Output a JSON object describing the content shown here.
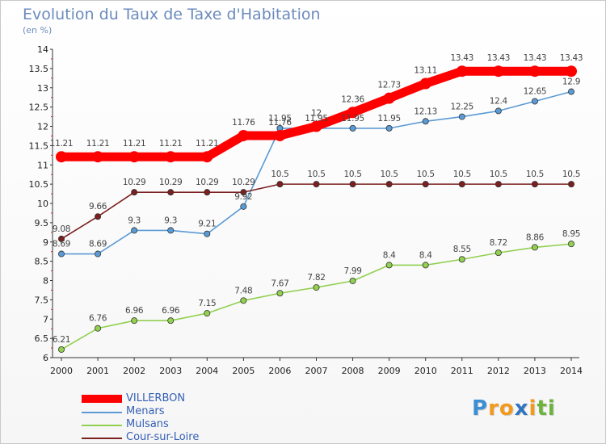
{
  "chart_data": {
    "type": "line",
    "title": "Evolution du Taux de Taxe d'Habitation",
    "ylabel": "(en %)",
    "xlabel": "",
    "x": [
      "2000",
      "2001",
      "2002",
      "2003",
      "2004",
      "2005",
      "2006",
      "2007",
      "2008",
      "2009",
      "2010",
      "2011",
      "2012",
      "2013",
      "2014"
    ],
    "ylim": [
      6,
      14
    ],
    "y_ticks": [
      "6",
      "6.5",
      "7",
      "7.5",
      "8",
      "8.5",
      "9",
      "9.5",
      "10",
      "10.5",
      "11",
      "11.5",
      "12",
      "12.5",
      "13",
      "13.5",
      "14"
    ],
    "grid": false,
    "legend_position": "bottom-left",
    "series": [
      {
        "name": "VILLERBON",
        "color": "#ff0000",
        "emphasis": true,
        "values": [
          11.21,
          11.21,
          11.21,
          11.21,
          11.21,
          11.76,
          11.76,
          12,
          12.36,
          12.73,
          13.11,
          13.43,
          13.43,
          13.43,
          13.43
        ],
        "labels": [
          "11.21",
          "11.21",
          "11.21",
          "11.21",
          "11.21",
          "11.76",
          "11.76",
          "12",
          "12.36",
          "12.73",
          "13.11",
          "13.43",
          "13.43",
          "13.43",
          "13.43"
        ]
      },
      {
        "name": "Menars",
        "color": "#5b9bd5",
        "emphasis": false,
        "values": [
          8.69,
          8.69,
          9.3,
          9.3,
          9.21,
          9.92,
          11.95,
          11.95,
          11.95,
          11.95,
          12.13,
          12.25,
          12.4,
          12.65,
          12.9
        ],
        "labels": [
          "8.69",
          "8.69",
          "9.3",
          "9.3",
          "9.21",
          "9.92",
          "11.95",
          "11.95",
          "11.95",
          "11.95",
          "12.13",
          "12.25",
          "12.4",
          "12.65",
          "12.9"
        ]
      },
      {
        "name": "Mulsans",
        "color": "#92d050",
        "emphasis": false,
        "values": [
          6.21,
          6.76,
          6.96,
          6.96,
          7.15,
          7.48,
          7.67,
          7.82,
          7.99,
          8.4,
          8.4,
          8.55,
          8.72,
          8.86,
          8.95
        ],
        "labels": [
          "6.21",
          "6.76",
          "6.96",
          "6.96",
          "7.15",
          "7.48",
          "7.67",
          "7.82",
          "7.99",
          "8.4",
          "8.4",
          "8.55",
          "8.72",
          "8.86",
          "8.95"
        ]
      },
      {
        "name": "Cour-sur-Loire",
        "color": "#7b1f1f",
        "emphasis": false,
        "values": [
          9.08,
          9.66,
          10.29,
          10.29,
          10.29,
          10.29,
          10.5,
          10.5,
          10.5,
          10.5,
          10.5,
          10.5,
          10.5,
          10.5,
          10.5
        ],
        "labels": [
          "9.08",
          "9.66",
          "10.29",
          "10.29",
          "10.29",
          "10.29",
          "10.5",
          "10.5",
          "10.5",
          "10.5",
          "10.5",
          "10.5",
          "10.5",
          "10.5",
          "10.5"
        ]
      }
    ]
  },
  "legend": {
    "items": [
      {
        "label": "VILLERBON",
        "color": "#ff0000"
      },
      {
        "label": "Menars",
        "color": "#5b9bd5"
      },
      {
        "label": "Mulsans",
        "color": "#92d050"
      },
      {
        "label": "Cour-sur-Loire",
        "color": "#7b1f1f"
      }
    ]
  },
  "brand": {
    "letters": [
      {
        "ch": "P",
        "color": "#3d8fd4"
      },
      {
        "ch": "r",
        "color": "#f29a1e"
      },
      {
        "ch": "o",
        "color": "#f29a1e"
      },
      {
        "ch": "x",
        "color": "#2f74c0"
      },
      {
        "ch": "i",
        "color": "#f29a1e"
      },
      {
        "ch": "t",
        "color": "#6cb33e"
      },
      {
        "ch": "i",
        "color": "#6cb33e"
      }
    ]
  }
}
